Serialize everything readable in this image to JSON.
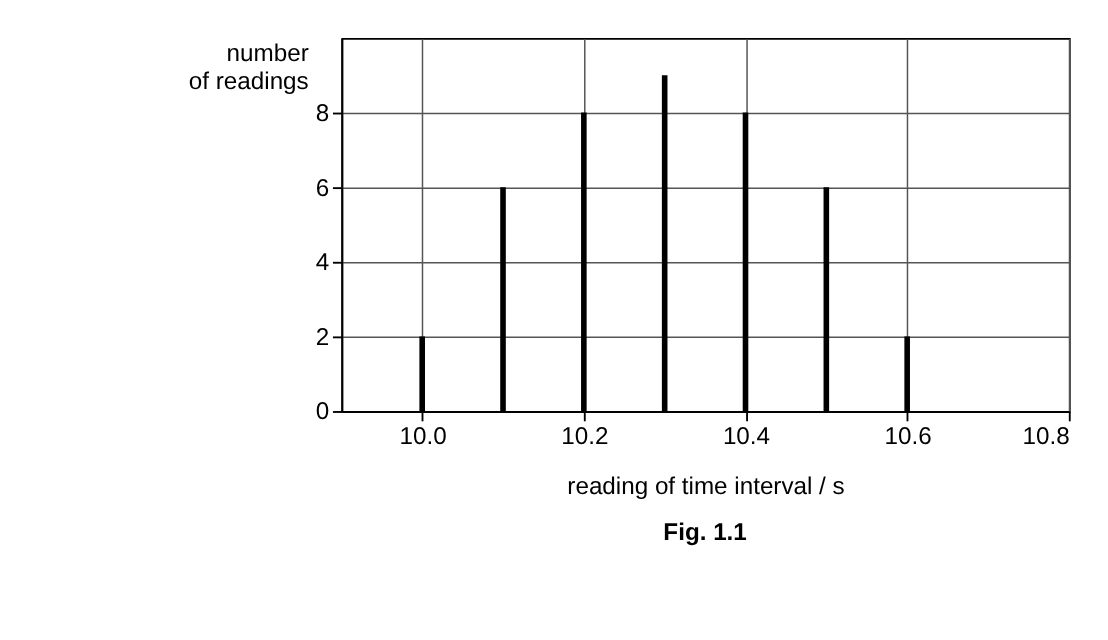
{
  "chart_data": {
    "type": "bar",
    "x": [
      10.0,
      10.1,
      10.2,
      10.3,
      10.4,
      10.5,
      10.6
    ],
    "values": [
      2,
      6,
      8,
      9,
      8,
      6,
      2
    ],
    "color": "#000000",
    "xlim": [
      9.9,
      10.8
    ],
    "xticks": [
      {
        "value": 10.0,
        "label": "10.0"
      },
      10.2,
      10.4,
      10.6,
      10.8
    ],
    "ylim": [
      0,
      10
    ],
    "yticks": [
      0,
      2,
      4,
      6,
      8
    ],
    "xlabel": "reading of time interval / s",
    "ylabel": "number\nof readings",
    "annotations": [
      "Fig. 1.1"
    ],
    "grid": true
  }
}
